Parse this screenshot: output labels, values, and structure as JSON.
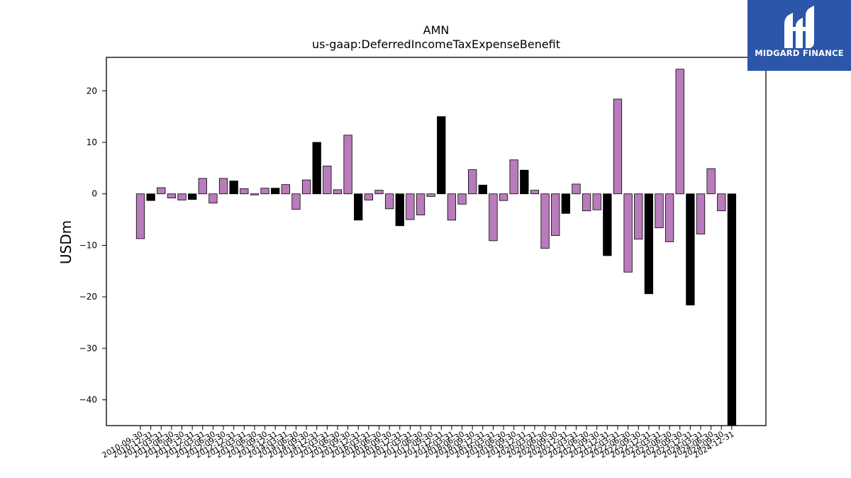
{
  "brand": {
    "name": "MIDGARD FINANCE",
    "bg_color": "#2b56aa"
  },
  "chart_data": {
    "type": "bar",
    "title": "AMN",
    "subtitle": "us-gaap:DeferredIncomeTaxExpenseBenefit",
    "xlabel": "",
    "ylabel": "USDm",
    "ylim": [
      -45,
      26.5
    ],
    "yticks": [
      -40,
      -30,
      -20,
      -10,
      0,
      10,
      20
    ],
    "grid": false,
    "colors": {
      "quarterly": "#b87bbb",
      "annual": "#000000",
      "edge": "#000000"
    },
    "categories": [
      "2010-09-30",
      "2010-12-31",
      "2011-03-31",
      "2011-06-30",
      "2011-09-30",
      "2011-12-31",
      "2012-03-31",
      "2012-06-30",
      "2012-09-30",
      "2012-12-31",
      "2013-03-31",
      "2013-06-30",
      "2013-09-30",
      "2013-12-31",
      "2014-03-31",
      "2014-06-30",
      "2014-09-30",
      "2014-12-31",
      "2015-03-31",
      "2015-06-30",
      "2015-09-30",
      "2015-12-31",
      "2016-03-31",
      "2016-06-30",
      "2016-09-30",
      "2016-12-31",
      "2017-03-31",
      "2017-06-30",
      "2017-09-30",
      "2017-12-31",
      "2018-03-31",
      "2018-06-30",
      "2018-09-30",
      "2018-12-31",
      "2019-03-31",
      "2019-06-30",
      "2019-09-30",
      "2019-12-31",
      "2020-03-31",
      "2020-06-30",
      "2020-09-30",
      "2020-12-31",
      "2021-03-31",
      "2021-06-30",
      "2021-09-30",
      "2021-12-31",
      "2022-03-31",
      "2022-06-30",
      "2022-09-30",
      "2022-12-31",
      "2023-03-31",
      "2023-06-30",
      "2023-09-30",
      "2023-12-31",
      "2024-03-31",
      "2024-06-30",
      "2024-09-30",
      "2024-12-31"
    ],
    "values": [
      -8.7,
      -1.3,
      1.2,
      -0.8,
      -1.2,
      -1.1,
      3.0,
      -1.8,
      3.0,
      2.5,
      1.0,
      -0.2,
      1.1,
      1.1,
      1.8,
      -3.0,
      2.7,
      10.0,
      5.4,
      0.8,
      11.4,
      -5.1,
      -1.2,
      0.7,
      -2.9,
      -6.2,
      -5.0,
      -4.1,
      -0.5,
      15.0,
      -5.1,
      -2.0,
      4.7,
      1.7,
      -9.1,
      -1.3,
      6.6,
      4.6,
      0.7,
      -10.6,
      -8.1,
      -3.8,
      1.9,
      -3.3,
      -3.1,
      -12.0,
      18.4,
      -15.2,
      -8.8,
      -19.4,
      -6.6,
      -9.3,
      24.2,
      -21.6,
      -7.8,
      4.9,
      -3.3,
      -45
    ],
    "annual": [
      false,
      true,
      false,
      false,
      false,
      true,
      false,
      false,
      false,
      true,
      false,
      false,
      false,
      true,
      false,
      false,
      false,
      true,
      false,
      false,
      false,
      true,
      false,
      false,
      false,
      true,
      false,
      false,
      false,
      true,
      false,
      false,
      false,
      true,
      false,
      false,
      false,
      true,
      false,
      false,
      false,
      true,
      false,
      false,
      false,
      true,
      false,
      false,
      false,
      true,
      false,
      false,
      false,
      true,
      false,
      false,
      false,
      true
    ]
  }
}
